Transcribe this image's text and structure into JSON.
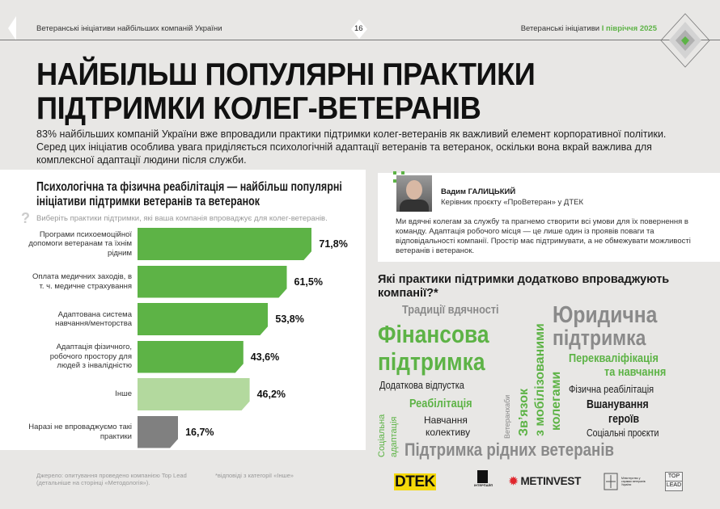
{
  "header": {
    "left": "Ветеранські ініціативи найбільших компаній України",
    "page": "16",
    "right_prefix": "Ветеранські ініціативи",
    "right_accent": "І півріччя 2025"
  },
  "title": [
    "НАЙБІЛЬШ ПОПУЛЯРНІ ПРАКТИКИ",
    "ПІДТРИМКИ КОЛЕГ-ВЕТЕРАНІВ"
  ],
  "intro": "83% найбільших компаній України вже впровадили практики підтримки колег-ветеранів як важливий елемент корпоративної політики. Серед цих ініціатив особлива увага приділяється психологічній адаптації ветеранів та ветеранок, оскільки вона вкрай важлива для комплексної адаптації людини після служби.",
  "chart_data": {
    "type": "bar",
    "title": "Психологічна та фізична реабілітація — найбільш популярні ініціативи підтримки ветеранів та ветеранок",
    "question": "Виберіть практики підтримки, які ваша компанія впроваджує для колег-ветеранів.",
    "categories": [
      "Програми психоемоційної допомоги ветеранам та їхнім рідним",
      "Оплата медичних заходів, в т. ч. медичне страхування",
      "Адаптована система навчання/менторства",
      "Адаптація фізичного, робочого простору для людей з інвалідністю",
      "Інше",
      "Наразі не впроваджуємо такі практики"
    ],
    "values": [
      71.8,
      61.5,
      53.8,
      43.6,
      46.2,
      16.7
    ],
    "labels": [
      "71,8%",
      "61,5%",
      "53,8%",
      "43,6%",
      "46,2%",
      "16,7%"
    ],
    "colors": [
      "#5db346",
      "#5db346",
      "#5db346",
      "#5db346",
      "#b3d99e",
      "#808080"
    ],
    "xlim": [
      0,
      100
    ]
  },
  "quote": {
    "name": "Вадим ГАЛИЦЬКИЙ",
    "role": "Керівник проєкту «ПроВетеран» у ДТЕК",
    "text": "Ми вдячні колегам за службу та прагнемо створити всі умови для їх повернення в команду. Адаптація робочого місця — це лише один із проявів поваги та відповідальності компанії. Простір має підтримувати, а не обмежувати можливості ветеранів і ветеранок."
  },
  "wordcloud": {
    "title": "Які практики підтримки додатково впроваджують компанії?*",
    "words": [
      "Традиції вдячності",
      "Фінансова",
      "підтримка",
      "Юридична",
      "підтримка",
      "Перекваліфікація",
      "та навчання",
      "Додаткова відпустка",
      "Фізична реабілітація",
      "Реабілітація",
      "Навчання",
      "колективу",
      "Вшанування",
      "героїв",
      "Соціальні проєкти",
      "Підтримка рідних ветеранів",
      "Соціальна",
      "адаптація",
      "Ветеранхаби",
      "Зв’язок",
      "з мобілізованими",
      "колегами"
    ]
  },
  "footer": {
    "source": "Джерело: опитування проведено компанією Top Lead (детальніше на сторінці «Методологія»).",
    "note": "*відповіді з категорії «Інше»"
  },
  "logos": [
    "DTEK",
    "ІНТЕРПАЙП",
    "METINVEST",
    "Міністерство у справах ветеранів України",
    "TOP",
    "LEAD"
  ]
}
